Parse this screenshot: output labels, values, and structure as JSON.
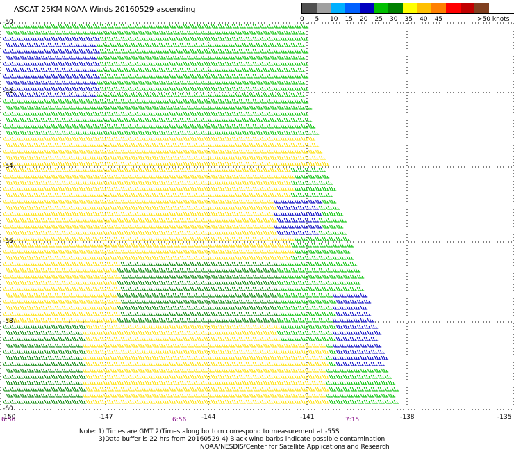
{
  "header": {
    "title": "ASCAT 25KM NOAA Winds 20160529 ascending"
  },
  "legend": {
    "units_label": ">50 knots",
    "ticks": [
      "0",
      "5",
      "10",
      "15",
      "20",
      "25",
      "30",
      "35",
      "40",
      "45"
    ],
    "colors": [
      "#505050",
      "#a0a0a0",
      "#00b0ff",
      "#0060ff",
      "#0000c0",
      "#00c000",
      "#008000",
      "#ffff00",
      "#ffc000",
      "#ff8000",
      "#ff0000",
      "#c00000",
      "#804020",
      "#c080c0",
      "#ff00ff",
      "#8000c0",
      "#400080"
    ]
  },
  "map": {
    "lat_labels": [
      "-50",
      "-52",
      "-54",
      "-56",
      "-58",
      "-60"
    ],
    "lon_labels": [
      "-150",
      "-147",
      "-144",
      "-141",
      "-138",
      "-135"
    ],
    "times": [
      "6:56",
      "6:56",
      "7:15"
    ],
    "speed_colors": {
      "blue": "#0000c0",
      "green": "#00c000",
      "dark_green": "#008000",
      "yellow": "#ffe000",
      "orange": "#ff9000"
    }
  },
  "notes": {
    "line1": "Note: 1) Times are GMT 2)Times along bottom correspond to measurement at -55S",
    "line2": "3)Data buffer is 22 hrs from 20160529 4) Black wind barbs indicate possible contamination",
    "line3": "NOAA/NESDIS/Center for Satellite Applications and Research"
  }
}
